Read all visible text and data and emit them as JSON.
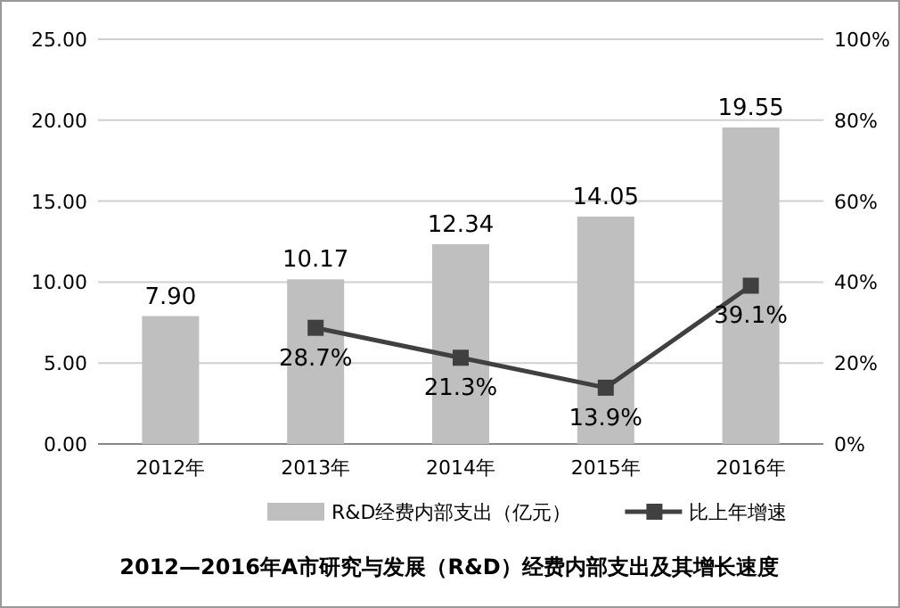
{
  "chart_data": {
    "type": "bar",
    "title": "2012—2016年A市研究与发展（R&D）经费内部支出及其增长速度",
    "categories": [
      "2012年",
      "2013年",
      "2014年",
      "2015年",
      "2016年"
    ],
    "series": [
      {
        "name": "R&D经费内部支出（亿元）",
        "color": "#bfbfbf",
        "values": [
          7.9,
          10.17,
          12.34,
          14.05,
          19.55
        ],
        "value_labels": [
          "7.90",
          "10.17",
          "12.34",
          "14.05",
          "19.55"
        ]
      },
      {
        "name": "比上年增速",
        "color": "#404040",
        "type": "line",
        "axis": "y2",
        "marker": "square",
        "values": [
          null,
          28.7,
          21.3,
          13.9,
          39.1
        ],
        "value_labels": [
          null,
          "28.7%",
          "21.3%",
          "13.9%",
          "39.1%"
        ]
      }
    ],
    "ylim": [
      0,
      25
    ],
    "yticks": [
      {
        "value": 0,
        "label": "0.00"
      },
      {
        "value": 5,
        "label": "5.00"
      },
      {
        "value": 10,
        "label": "10.00"
      },
      {
        "value": 15,
        "label": "15.00"
      },
      {
        "value": 20,
        "label": "20.00"
      },
      {
        "value": 25,
        "label": "25.00"
      }
    ],
    "y2lim": [
      0,
      100
    ],
    "y2ticks": [
      {
        "value": 0,
        "label": "0%"
      },
      {
        "value": 20,
        "label": "20%"
      },
      {
        "value": 40,
        "label": "40%"
      },
      {
        "value": 60,
        "label": "60%"
      },
      {
        "value": 80,
        "label": "80%"
      },
      {
        "value": 100,
        "label": "100%"
      }
    ],
    "grid": "y",
    "legend": "bottom"
  }
}
